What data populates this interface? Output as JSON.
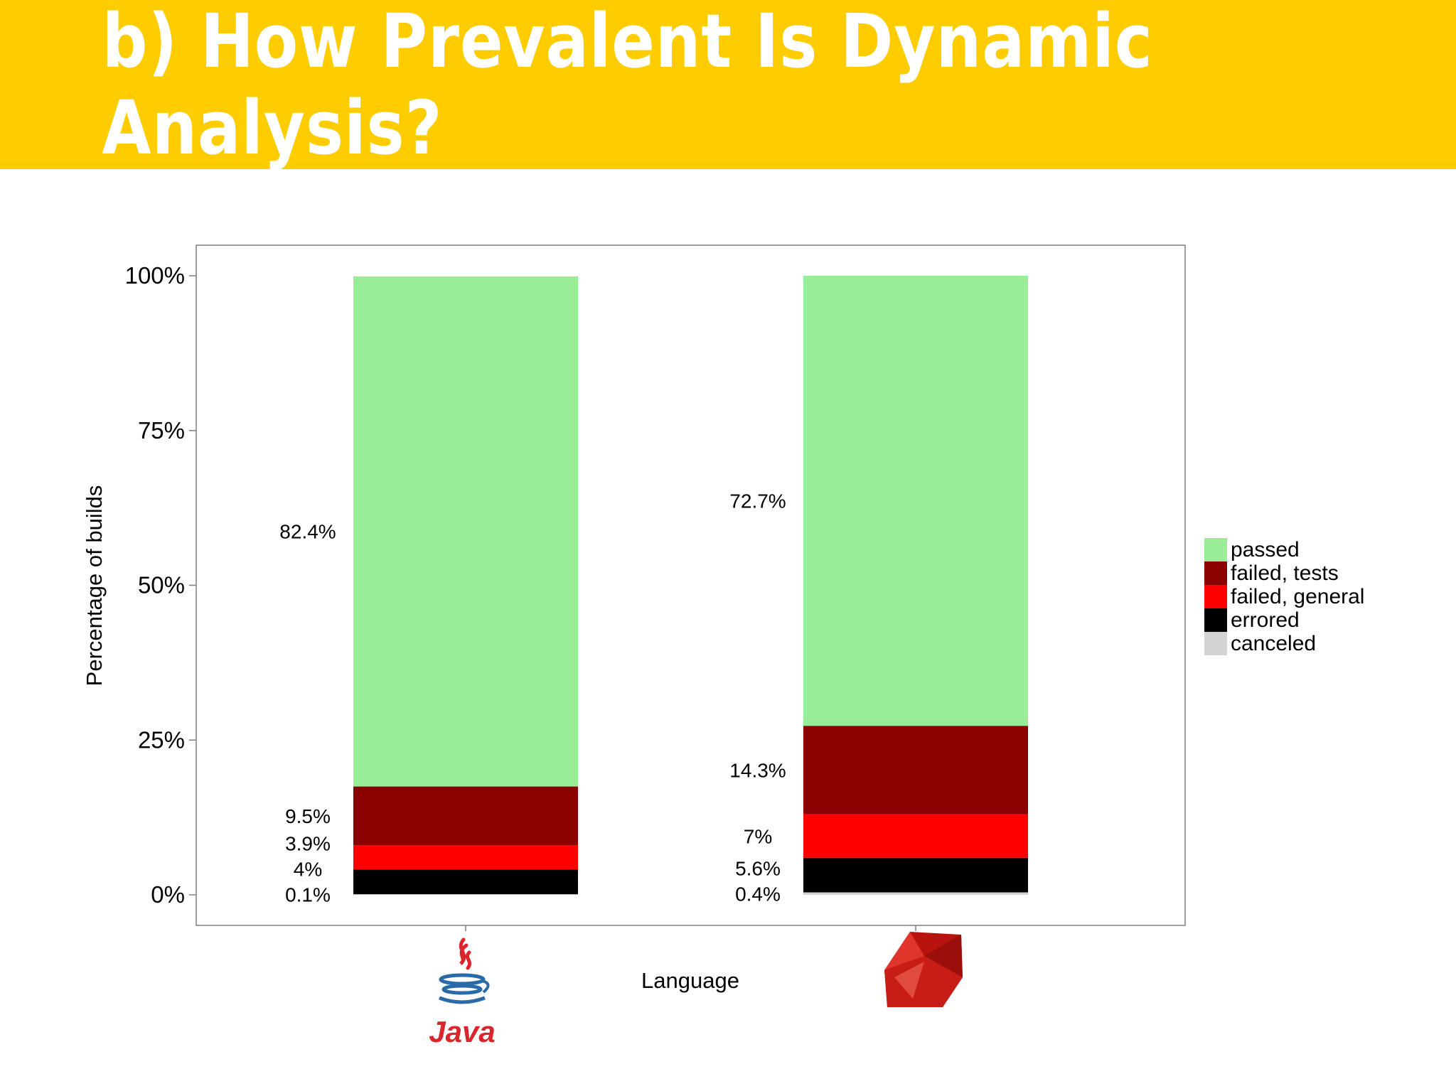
{
  "slide": {
    "title": "b) How Prevalent Is Dynamic Analysis?"
  },
  "colors": {
    "banner": "#ffcc00",
    "passed": "#99ed99",
    "failed_tests": "#8b0000",
    "failed_general": "#ff0000",
    "errored": "#000000",
    "canceled": "#d3d3d3"
  },
  "chart_data": {
    "type": "bar",
    "stacked": true,
    "title": "",
    "xlabel": "Language",
    "ylabel": "Percentage of builds",
    "ylim": [
      0,
      100
    ],
    "y_ticks": [
      "0%",
      "25%",
      "50%",
      "75%",
      "100%"
    ],
    "categories": [
      "Java",
      "Ruby"
    ],
    "category_icons": [
      "java-logo",
      "ruby-logo"
    ],
    "legend_position": "right",
    "grid": false,
    "series": [
      {
        "name": "canceled",
        "values": [
          0.1,
          0.4
        ],
        "labels": [
          "0.1%",
          "0.4%"
        ]
      },
      {
        "name": "errored",
        "values": [
          4,
          5.6
        ],
        "labels": [
          "4%",
          "5.6%"
        ]
      },
      {
        "name": "failed, general",
        "values": [
          3.9,
          7
        ],
        "labels": [
          "3.9%",
          "7%"
        ]
      },
      {
        "name": "failed, tests",
        "values": [
          9.5,
          14.3
        ],
        "labels": [
          "9.5%",
          "14.3%"
        ]
      },
      {
        "name": "passed",
        "values": [
          82.4,
          72.7
        ],
        "labels": [
          "82.4%",
          "72.7%"
        ]
      }
    ],
    "legend": [
      "passed",
      "failed, tests",
      "failed, general",
      "errored",
      "canceled"
    ]
  },
  "logos": {
    "java_text": "Java"
  }
}
